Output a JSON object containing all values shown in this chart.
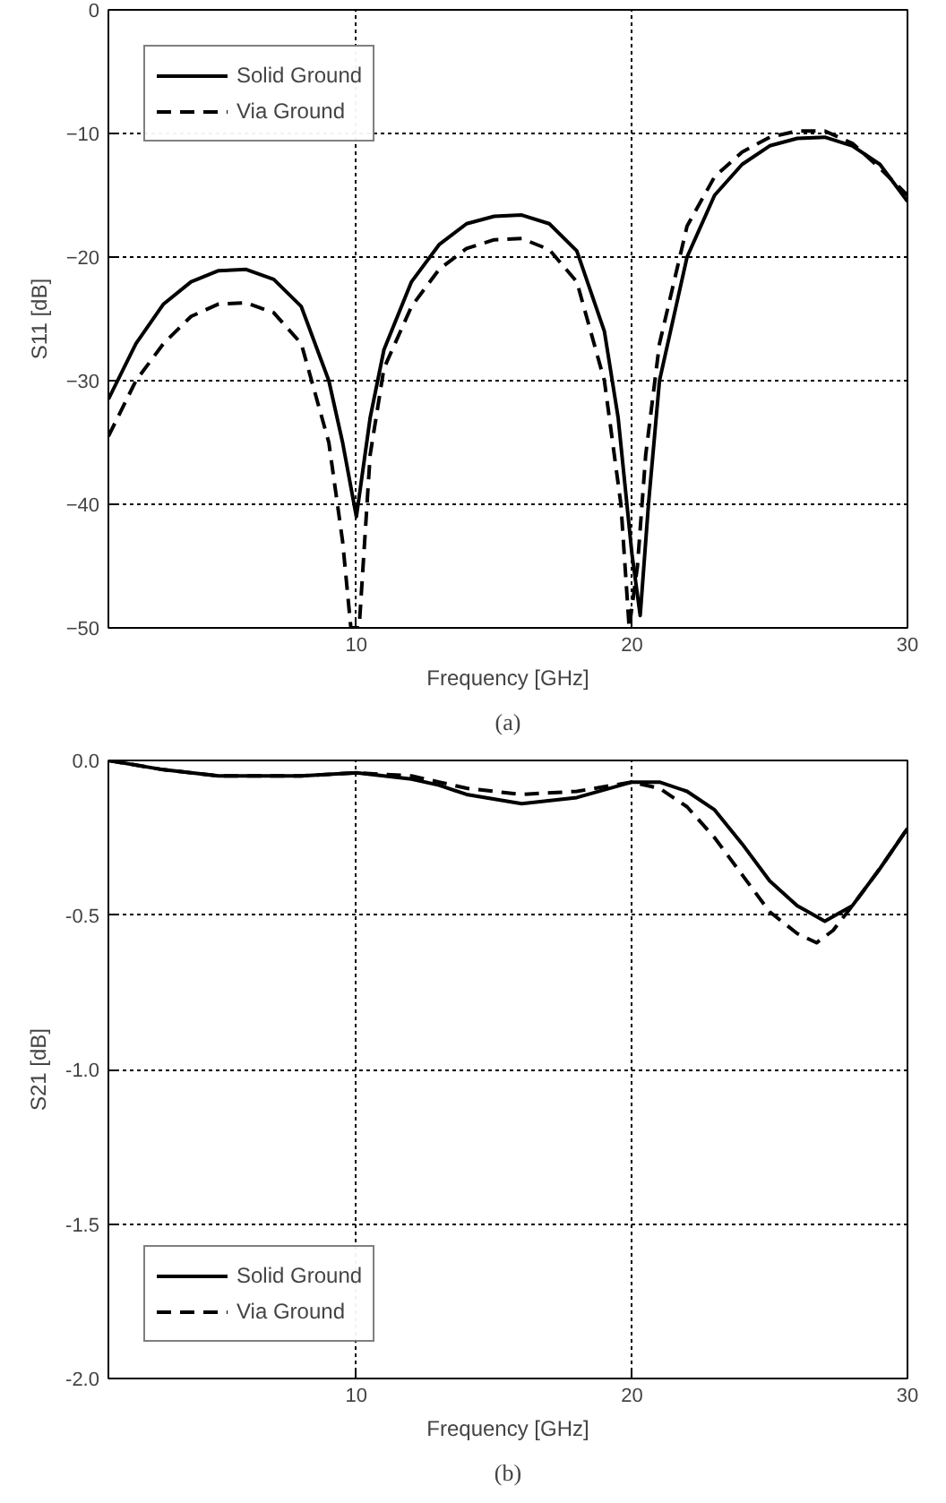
{
  "chart_data": [
    {
      "type": "line",
      "title": "(a)",
      "xlabel": "Frequency [GHz]",
      "ylabel": "S11 [dB]",
      "xlim": [
        1,
        30
      ],
      "xticks": [
        10,
        20,
        30
      ],
      "ylim": [
        -50,
        0
      ],
      "yticks": [
        -50,
        -40,
        -30,
        -20,
        -10,
        0
      ],
      "grid": true,
      "legend": "top left",
      "series": [
        {
          "name": "Solid Ground",
          "color": "#000000",
          "line_style": "solid",
          "x": [
            1,
            2,
            3,
            4,
            5,
            6,
            7,
            8,
            9,
            9.5,
            10,
            10.5,
            11,
            12,
            13,
            14,
            15,
            16,
            17,
            18,
            19,
            19.5,
            20,
            20.3,
            20.6,
            21,
            22,
            23,
            24,
            25,
            26,
            27,
            28,
            29,
            30
          ],
          "values": [
            -31.5,
            -27,
            -23.8,
            -22,
            -21.1,
            -21,
            -21.8,
            -24,
            -30,
            -35,
            -41,
            -33,
            -27.5,
            -22,
            -19,
            -17.3,
            -16.7,
            -16.6,
            -17.3,
            -19.5,
            -26,
            -33,
            -44,
            -49,
            -40,
            -30,
            -20,
            -15,
            -12.5,
            -11,
            -10.4,
            -10.3,
            -11,
            -12.5,
            -15.5
          ]
        },
        {
          "name": "Via Ground",
          "color": "#000000",
          "line_style": "dashed",
          "x": [
            1,
            2,
            3,
            4,
            5,
            6,
            7,
            8,
            9,
            9.5,
            9.8,
            10.1,
            10.5,
            11,
            12,
            13,
            14,
            15,
            16,
            17,
            18,
            19,
            19.6,
            19.9,
            20.2,
            20.5,
            21,
            22,
            23,
            24,
            25,
            26,
            27,
            28,
            29,
            30
          ],
          "values": [
            -34.5,
            -30,
            -27,
            -24.8,
            -23.8,
            -23.7,
            -24.5,
            -27,
            -35,
            -43,
            -50,
            -50,
            -36,
            -29,
            -24,
            -21,
            -19.3,
            -18.6,
            -18.5,
            -19.4,
            -22,
            -30,
            -40,
            -50,
            -45,
            -36,
            -27,
            -17.5,
            -13.5,
            -11.5,
            -10.3,
            -9.8,
            -9.8,
            -10.8,
            -12.8,
            -15
          ]
        }
      ]
    },
    {
      "type": "line",
      "title": "(b)",
      "xlabel": "Frequency [GHz]",
      "ylabel": "S21 [dB]",
      "xlim": [
        1,
        30
      ],
      "xticks": [
        10,
        20,
        30
      ],
      "ylim": [
        -2.0,
        0.0
      ],
      "yticks": [
        {
          "value": -2.0,
          "label": "-2.0"
        },
        {
          "value": -1.5,
          "label": "-1.5"
        },
        {
          "value": -1.0,
          "label": "-1.0"
        },
        {
          "value": -0.5,
          "label": "-0.5"
        },
        {
          "value": 0.0,
          "label": "0.0"
        }
      ],
      "grid": true,
      "legend": "bottom left",
      "series": [
        {
          "name": "Solid Ground",
          "color": "#000000",
          "line_style": "solid",
          "x": [
            1,
            3,
            5,
            8,
            10,
            12,
            13,
            14,
            16,
            18,
            20,
            21,
            22,
            23,
            24,
            25,
            26,
            27,
            28,
            29,
            30
          ],
          "values": [
            0,
            -0.03,
            -0.05,
            -0.05,
            -0.04,
            -0.06,
            -0.08,
            -0.11,
            -0.14,
            -0.12,
            -0.07,
            -0.07,
            -0.1,
            -0.16,
            -0.27,
            -0.39,
            -0.47,
            -0.52,
            -0.47,
            -0.35,
            -0.22
          ]
        },
        {
          "name": "Via Ground",
          "color": "#000000",
          "line_style": "dashed",
          "x": [
            1,
            3,
            5,
            8,
            10,
            12,
            13,
            14,
            16,
            18,
            20,
            21,
            22,
            23,
            24,
            25,
            26,
            26.7,
            27.3,
            28,
            29,
            30
          ],
          "values": [
            0,
            -0.03,
            -0.05,
            -0.05,
            -0.04,
            -0.05,
            -0.07,
            -0.09,
            -0.11,
            -0.1,
            -0.07,
            -0.09,
            -0.15,
            -0.25,
            -0.37,
            -0.49,
            -0.56,
            -0.59,
            -0.55,
            -0.47,
            -0.35,
            -0.22
          ]
        }
      ]
    }
  ]
}
